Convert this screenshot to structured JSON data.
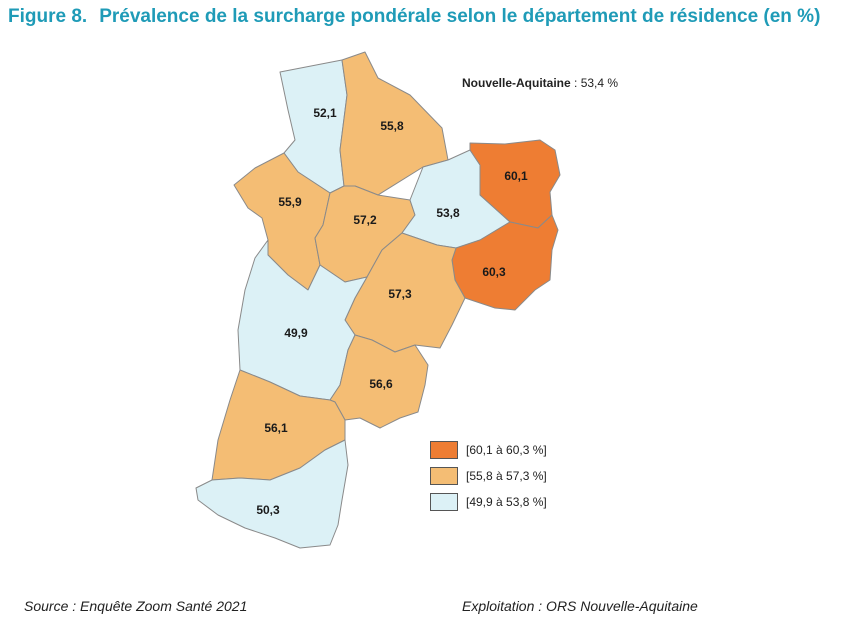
{
  "figure": {
    "number": "Figure 8.",
    "title": "Prévalence de la surcharge pondérale selon le département de résidence (en %)"
  },
  "region_summary": {
    "name": "Nouvelle-Aquitaine",
    "separator": " : ",
    "value": "53,4 %"
  },
  "departments": [
    {
      "id": "deux-sevres",
      "value": "52,1",
      "class": "low"
    },
    {
      "id": "vienne",
      "value": "55,8",
      "class": "mid"
    },
    {
      "id": "charente-maritime",
      "value": "55,9",
      "class": "mid"
    },
    {
      "id": "charente",
      "value": "57,2",
      "class": "mid"
    },
    {
      "id": "haute-vienne",
      "value": "53,8",
      "class": "low"
    },
    {
      "id": "creuse",
      "value": "60,1",
      "class": "high"
    },
    {
      "id": "correze",
      "value": "60,3",
      "class": "high"
    },
    {
      "id": "dordogne",
      "value": "57,3",
      "class": "mid"
    },
    {
      "id": "gironde",
      "value": "49,9",
      "class": "low"
    },
    {
      "id": "lot-et-garonne",
      "value": "56,6",
      "class": "mid"
    },
    {
      "id": "landes",
      "value": "56,1",
      "class": "mid"
    },
    {
      "id": "pyrenees-atlantiques",
      "value": "50,3",
      "class": "low"
    }
  ],
  "legend": [
    {
      "label": "[60,1 à 60,3 %]",
      "color": "#ee7d33"
    },
    {
      "label": "[55,8 à 57,3 %]",
      "color": "#f4bd74"
    },
    {
      "label": "[49,9 à 53,8 %]",
      "color": "#dcf1f6"
    }
  ],
  "colors": {
    "high": "#ee7d33",
    "mid": "#f4bd74",
    "low": "#dcf1f6",
    "title": "#1f9bb7"
  },
  "footer": {
    "source": "Source : Enquête Zoom Santé 2021",
    "exploitation": "Exploitation : ORS Nouvelle-Aquitaine"
  }
}
